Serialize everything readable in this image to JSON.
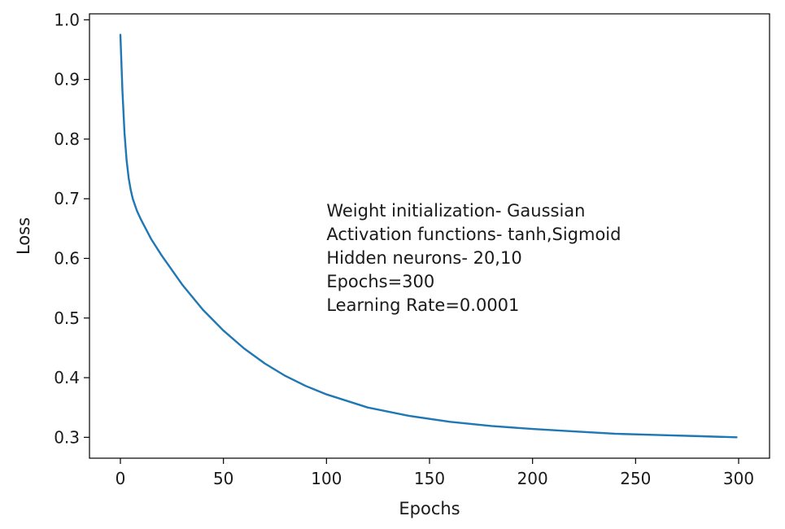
{
  "chart_data": {
    "type": "line",
    "title": "",
    "xlabel": "Epochs",
    "ylabel": "Loss",
    "xlim": [
      -15,
      315
    ],
    "ylim": [
      0.265,
      1.01
    ],
    "xticks": [
      0,
      50,
      100,
      150,
      200,
      250,
      300
    ],
    "yticks": [
      0.3,
      0.4,
      0.5,
      0.6,
      0.7,
      0.8,
      0.9,
      1.0
    ],
    "xtick_labels": [
      "0",
      "50",
      "100",
      "150",
      "200",
      "250",
      "300"
    ],
    "ytick_labels": [
      "0.3",
      "0.4",
      "0.5",
      "0.6",
      "0.7",
      "0.8",
      "0.9",
      "1.0"
    ],
    "grid": false,
    "series": [
      {
        "color": "#1f77b4",
        "x": [
          0,
          1,
          2,
          3,
          4,
          5,
          6,
          8,
          10,
          15,
          20,
          30,
          40,
          50,
          60,
          70,
          80,
          90,
          100,
          120,
          140,
          160,
          180,
          200,
          220,
          240,
          260,
          280,
          299
        ],
        "y": [
          0.975,
          0.88,
          0.81,
          0.765,
          0.735,
          0.715,
          0.7,
          0.68,
          0.665,
          0.632,
          0.605,
          0.556,
          0.514,
          0.479,
          0.449,
          0.424,
          0.403,
          0.386,
          0.372,
          0.35,
          0.336,
          0.326,
          0.319,
          0.314,
          0.31,
          0.306,
          0.304,
          0.302,
          0.3
        ]
      }
    ],
    "annotation": {
      "lines": [
        "Weight initialization- Gaussian",
        "Activation functions- tanh,Sigmoid",
        "Hidden neurons- 20,10",
        "Epochs=300",
        "Learning Rate=0.0001"
      ],
      "x": 100,
      "y": 0.67
    }
  }
}
